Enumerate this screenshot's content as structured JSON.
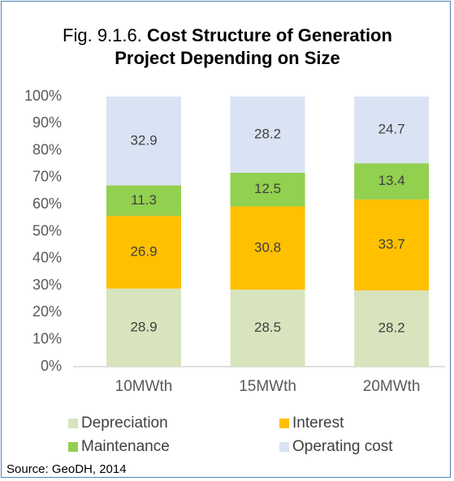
{
  "chart_data": {
    "type": "stacked_bar",
    "figure_label": "Fig. 9.1.6.",
    "title": "Cost Structure of Generation Project Depending on Size",
    "categories": [
      "10MWth",
      "15MWth",
      "20MWth"
    ],
    "series": [
      {
        "name": "Depreciation",
        "color": "#d7e4bd",
        "values": [
          28.9,
          28.5,
          28.2
        ]
      },
      {
        "name": "Interest",
        "color": "#ffc000",
        "values": [
          26.9,
          30.8,
          33.7
        ]
      },
      {
        "name": "Maintenance",
        "color": "#92d050",
        "values": [
          11.3,
          12.5,
          13.4
        ]
      },
      {
        "name": "Operating cost",
        "color": "#dae3f3",
        "values": [
          32.9,
          28.2,
          24.7
        ]
      }
    ],
    "ylim": [
      0,
      100
    ],
    "yticks": [
      {
        "value": 0,
        "label": "0%"
      },
      {
        "value": 10,
        "label": "10%"
      },
      {
        "value": 20,
        "label": "20%"
      },
      {
        "value": 30,
        "label": "30%"
      },
      {
        "value": 40,
        "label": "40%"
      },
      {
        "value": 50,
        "label": "50%"
      },
      {
        "value": 60,
        "label": "60%"
      },
      {
        "value": 70,
        "label": "70%"
      },
      {
        "value": 80,
        "label": "80%"
      },
      {
        "value": 90,
        "label": "90%"
      },
      {
        "value": 100,
        "label": "100%"
      }
    ],
    "grid": false,
    "legend": "bottom",
    "source": "Source: GeoDH, 2014"
  }
}
